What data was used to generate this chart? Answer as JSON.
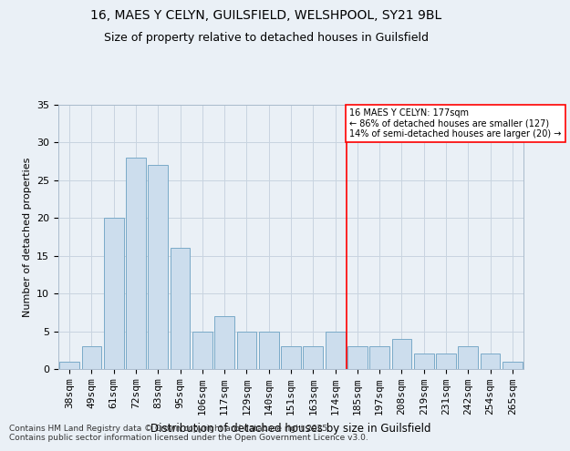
{
  "title": "16, MAES Y CELYN, GUILSFIELD, WELSHPOOL, SY21 9BL",
  "subtitle": "Size of property relative to detached houses in Guilsfield",
  "xlabel": "Distribution of detached houses by size in Guilsfield",
  "ylabel": "Number of detached properties",
  "categories": [
    "38sqm",
    "49sqm",
    "61sqm",
    "72sqm",
    "83sqm",
    "95sqm",
    "106sqm",
    "117sqm",
    "129sqm",
    "140sqm",
    "151sqm",
    "163sqm",
    "174sqm",
    "185sqm",
    "197sqm",
    "208sqm",
    "219sqm",
    "231sqm",
    "242sqm",
    "254sqm",
    "265sqm"
  ],
  "values": [
    1,
    3,
    20,
    28,
    27,
    16,
    5,
    7,
    5,
    5,
    3,
    3,
    5,
    3,
    3,
    4,
    2,
    2,
    3,
    2,
    1
  ],
  "bar_color": "#ccdded",
  "bar_edge_color": "#7aaac8",
  "marker_line_index": 12,
  "marker_label_line1": "16 MAES Y CELYN: 177sqm",
  "marker_label_line2": "← 86% of detached houses are smaller (127)",
  "marker_label_line3": "14% of semi-detached houses are larger (20) →",
  "ylim": [
    0,
    35
  ],
  "yticks": [
    0,
    5,
    10,
    15,
    20,
    25,
    30,
    35
  ],
  "grid_color": "#c8d4e0",
  "background_color": "#eaf0f6",
  "footer": "Contains HM Land Registry data © Crown copyright and database right 2025.\nContains public sector information licensed under the Open Government Licence v3.0."
}
